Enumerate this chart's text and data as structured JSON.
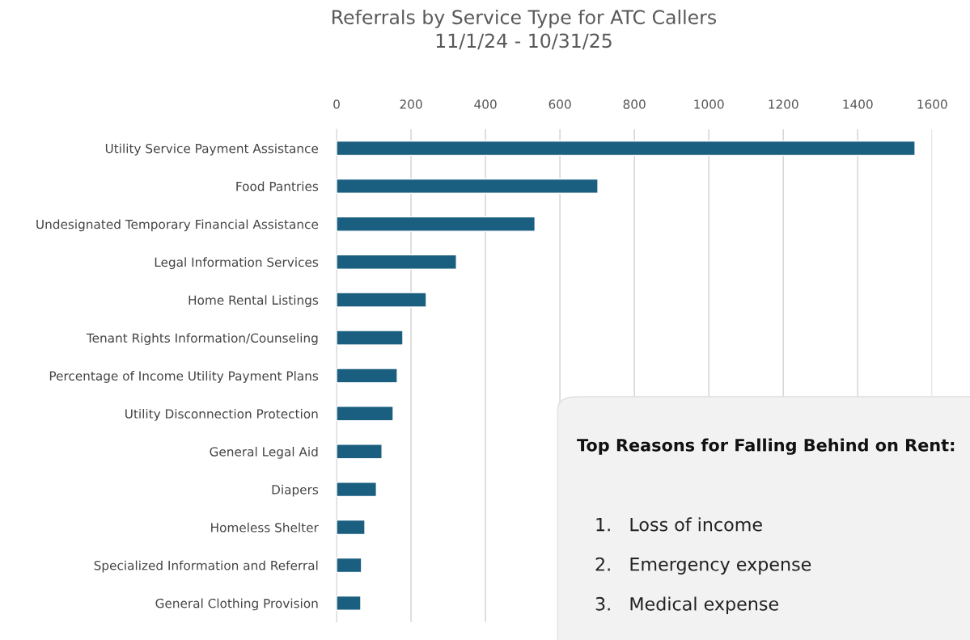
{
  "chart_data": {
    "type": "bar",
    "orientation": "horizontal",
    "title": "Referrals by Service Type for ATC Callers\n11/1/24 - 10/31/25",
    "categories": [
      "Utility Service Payment Assistance",
      "Food Pantries",
      "Undesignated Temporary Financial Assistance",
      "Legal Information Services",
      "Home Rental Listings",
      "Tenant Rights Information/Counseling",
      "Percentage of Income Utility Payment Plans",
      "Utility Disconnection Protection",
      "General Legal Aid",
      "Diapers",
      "Homeless Shelter",
      "Specialized Information and Referral",
      "General Clothing Provision"
    ],
    "values": [
      1554,
      702,
      533,
      322,
      241,
      178,
      163,
      152,
      122,
      107,
      76,
      67,
      65
    ],
    "color": "#1a5e80",
    "xlim": [
      0,
      1600
    ],
    "xticks": [
      0,
      200,
      400,
      600,
      800,
      1000,
      1200,
      1400,
      1600
    ],
    "grid": "x",
    "annotations": [
      "Top Reasons for Falling Behind on Rent:",
      "1.   Loss of income",
      "2.   Emergency expense",
      "3.   Medical expense"
    ]
  }
}
